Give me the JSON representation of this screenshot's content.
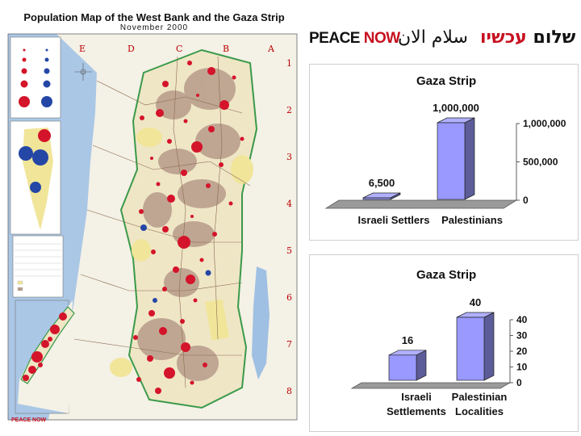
{
  "map": {
    "title": "Population Map of the West Bank and the Gaza Strip",
    "subtitle": "November 2000",
    "grid_columns": [
      "E",
      "D",
      "C",
      "B",
      "A"
    ],
    "grid_rows": [
      "1",
      "2",
      "3",
      "4",
      "5",
      "6",
      "7",
      "8"
    ],
    "footer_brand": "PEACE NOW",
    "colors": {
      "sea": "#aac7e6",
      "land": "#f4f1e6",
      "settlement": "#d4142a",
      "palestinian": "#2447a6",
      "area": "#b79b8a",
      "yellow": "#f1e59a"
    }
  },
  "header": {
    "peace": "PEACE",
    "now": "NOW",
    "arabic": "سلام الان",
    "hebrew_red": "עכשיו",
    "hebrew_black": "שלום"
  },
  "chart_data": [
    {
      "type": "bar",
      "title": "Gaza Strip",
      "categories": [
        "Israeli Settlers",
        "Palestinians"
      ],
      "values": [
        6500,
        1000000
      ],
      "data_labels": [
        "6,500",
        "1,000,000"
      ],
      "ylim": [
        0,
        1000000
      ],
      "yticks": [
        "0",
        "500,000",
        "1,000,000"
      ],
      "bar_color": "#9999ff",
      "style": "3d"
    },
    {
      "type": "bar",
      "title": "Gaza Strip",
      "categories": [
        "Israeli Settlements",
        "Palestinian Localities"
      ],
      "category_lines": [
        [
          "Israeli",
          "Settlements"
        ],
        [
          "Palestinian",
          "Localities"
        ]
      ],
      "values": [
        16,
        40
      ],
      "data_labels": [
        "16",
        "40"
      ],
      "ylim": [
        0,
        40
      ],
      "yticks": [
        "0",
        "10",
        "20",
        "30",
        "40"
      ],
      "bar_color": "#9999ff",
      "style": "3d"
    }
  ]
}
